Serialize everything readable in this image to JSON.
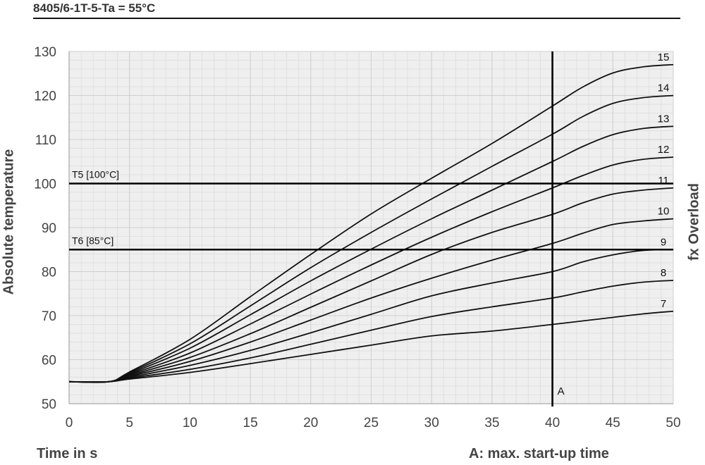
{
  "chart_data": {
    "type": "line",
    "title": "8405/6-1T-5-Ta = 55°C",
    "xlabel": "Time in s",
    "ylabel": "Absolute temperature",
    "y2label": "fx Overload",
    "note": "A: max. start-up time",
    "xlim": [
      0,
      50
    ],
    "ylim": [
      50,
      130
    ],
    "xticks": [
      "0",
      "5",
      "10",
      "15",
      "20",
      "25",
      "30",
      "35",
      "40",
      "45",
      "50"
    ],
    "yticks": [
      "50",
      "60",
      "70",
      "80",
      "90",
      "100",
      "110",
      "120",
      "130"
    ],
    "grid": true,
    "reference_lines": [
      {
        "label": "T5 [100°C]",
        "y": 100
      },
      {
        "label": "T6 [85°C]",
        "y": 85
      }
    ],
    "vertical_line": {
      "label": "A",
      "x": 40
    },
    "x": [
      0,
      3.3,
      5,
      10,
      15,
      20,
      25,
      30,
      35,
      40,
      42.5,
      45,
      47.5,
      50
    ],
    "series": [
      {
        "name": "7",
        "values": [
          55,
          55,
          55.6,
          57.1,
          59.1,
          61.2,
          63.3,
          65.4,
          66.5,
          68.0,
          68.8,
          69.6,
          70.4,
          71.0
        ]
      },
      {
        "name": "8",
        "values": [
          55,
          55,
          55.8,
          57.8,
          60.4,
          63.5,
          66.7,
          69.8,
          72.0,
          74.0,
          75.4,
          76.7,
          77.6,
          78.0
        ]
      },
      {
        "name": "9",
        "values": [
          55,
          55,
          56.0,
          58.7,
          62.1,
          66.1,
          70.3,
          74.5,
          77.4,
          80.0,
          82.2,
          83.8,
          84.8,
          85.0
        ]
      },
      {
        "name": "10",
        "values": [
          55,
          55,
          56.2,
          59.6,
          64.0,
          69.0,
          74.0,
          78.5,
          82.6,
          86.4,
          88.7,
          90.7,
          91.5,
          92.0
        ]
      },
      {
        "name": "11",
        "values": [
          55,
          55,
          56.4,
          60.5,
          65.9,
          71.9,
          77.9,
          83.9,
          88.9,
          93.0,
          95.6,
          97.6,
          98.5,
          99.0
        ]
      },
      {
        "name": "12",
        "values": [
          55,
          55,
          56.6,
          61.5,
          68.1,
          74.9,
          81.5,
          87.8,
          93.6,
          99.0,
          101.8,
          104.2,
          105.5,
          106.0
        ]
      },
      {
        "name": "13",
        "values": [
          55,
          55,
          56.8,
          62.6,
          70.2,
          77.9,
          85.1,
          92.0,
          98.5,
          105.0,
          108.4,
          111.1,
          112.5,
          113.0
        ]
      },
      {
        "name": "14",
        "values": [
          55,
          55,
          57.0,
          63.6,
          72.2,
          80.9,
          88.9,
          96.5,
          103.9,
          111.2,
          115.2,
          118.2,
          119.5,
          120.0
        ]
      },
      {
        "name": "15",
        "values": [
          55,
          55,
          57.2,
          64.6,
          74.3,
          83.9,
          93.1,
          101.2,
          109.1,
          117.6,
          121.9,
          125.1,
          126.5,
          127.0
        ]
      }
    ]
  }
}
